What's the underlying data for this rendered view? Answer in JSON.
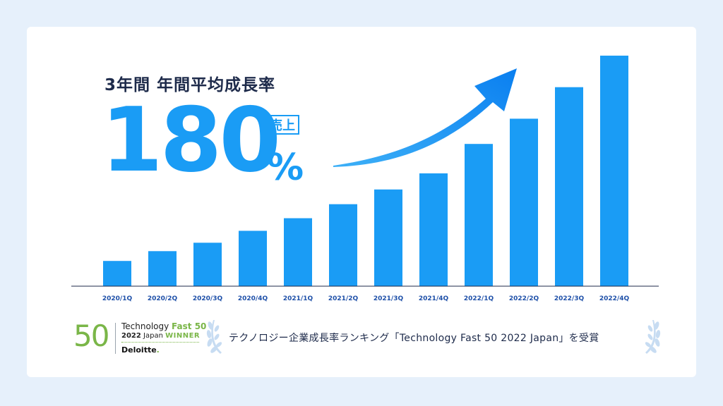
{
  "headline": "3年間 年間平均成長率",
  "growth_rate": "180",
  "growth_unit": "%",
  "metric_badge": "売上",
  "chart_data": {
    "type": "bar",
    "categories": [
      "2020/1Q",
      "2020/2Q",
      "2020/3Q",
      "2020/4Q",
      "2021/1Q",
      "2021/2Q",
      "2021/3Q",
      "2021/4Q",
      "2022/1Q",
      "2022/2Q",
      "2022/3Q",
      "2022/4Q"
    ],
    "values": [
      36,
      50,
      62,
      79,
      97,
      117,
      138,
      161,
      203,
      239,
      284,
      329
    ],
    "ylim": [
      0,
      340
    ],
    "grid": false,
    "bar_color": "#1a9cf5",
    "arrow_color": "#1a8cf0"
  },
  "award": {
    "logo_number": "50",
    "logo_line1_a": "Technology",
    "logo_line1_b": "Fast 50",
    "logo_line2_a": "2022",
    "logo_line2_b": "Japan",
    "logo_line2_c": "WINNER",
    "logo_line3": "Deloitte",
    "logo_line3_dot": ".",
    "text": "テクノロジー企業成長率ランキング「Technology Fast 50 2022 Japan」を受賞",
    "brand_green": "#7ab648",
    "laurel_color": "#c7dcf2"
  }
}
